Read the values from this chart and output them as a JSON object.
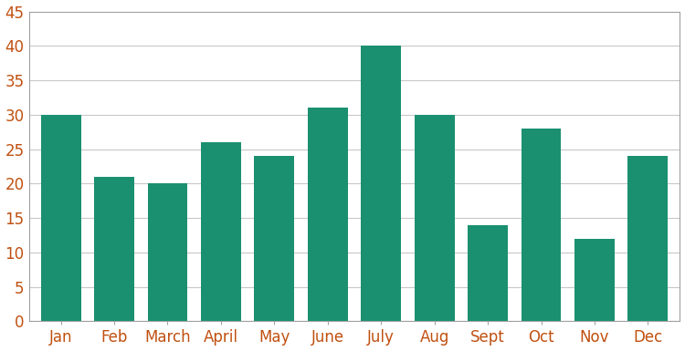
{
  "categories": [
    "Jan",
    "Feb",
    "March",
    "April",
    "May",
    "June",
    "July",
    "Aug",
    "Sept",
    "Oct",
    "Nov",
    "Dec"
  ],
  "values": [
    30,
    21,
    20,
    26,
    24,
    31,
    40,
    30,
    14,
    28,
    12,
    24
  ],
  "bar_color": "#1a9070",
  "ylim": [
    0,
    45
  ],
  "yticks": [
    0,
    5,
    10,
    15,
    20,
    25,
    30,
    35,
    40,
    45
  ],
  "background_color": "#ffffff",
  "grid_color": "#c8c8c8",
  "bar_width": 0.75,
  "spine_color": "#a0a0a0",
  "tick_label_fontsize": 12,
  "tick_label_color": "#c05010"
}
